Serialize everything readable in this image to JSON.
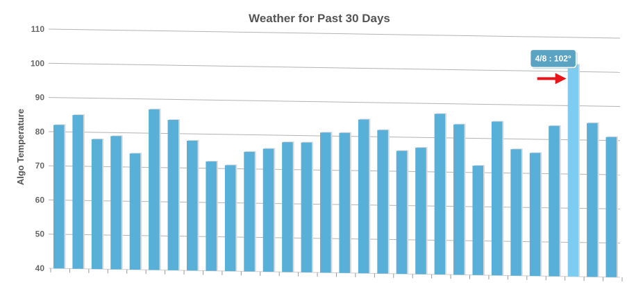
{
  "chart_data": {
    "type": "bar",
    "title": "Weather for Past 30 Days",
    "xlabel": "",
    "ylabel": "Algo Temperature",
    "ylim": [
      40,
      110
    ],
    "yticks": [
      40,
      50,
      60,
      70,
      80,
      90,
      100,
      110
    ],
    "grid": true,
    "legend": "none",
    "values": [
      82,
      85,
      78,
      79,
      74,
      87,
      84,
      78,
      72,
      71,
      75,
      76,
      78,
      78,
      81,
      81,
      85,
      82,
      76,
      77,
      87,
      84,
      72,
      85,
      77,
      76,
      84,
      102,
      85,
      81
    ],
    "highlight_index": 27,
    "tooltip": {
      "label": "4/8 : 102°"
    },
    "colors": {
      "bar": "#58afd7",
      "bar_highlight": "#7ccdf1",
      "tooltip_bg": "#5ba3c2",
      "arrow": "#e8141a"
    }
  }
}
